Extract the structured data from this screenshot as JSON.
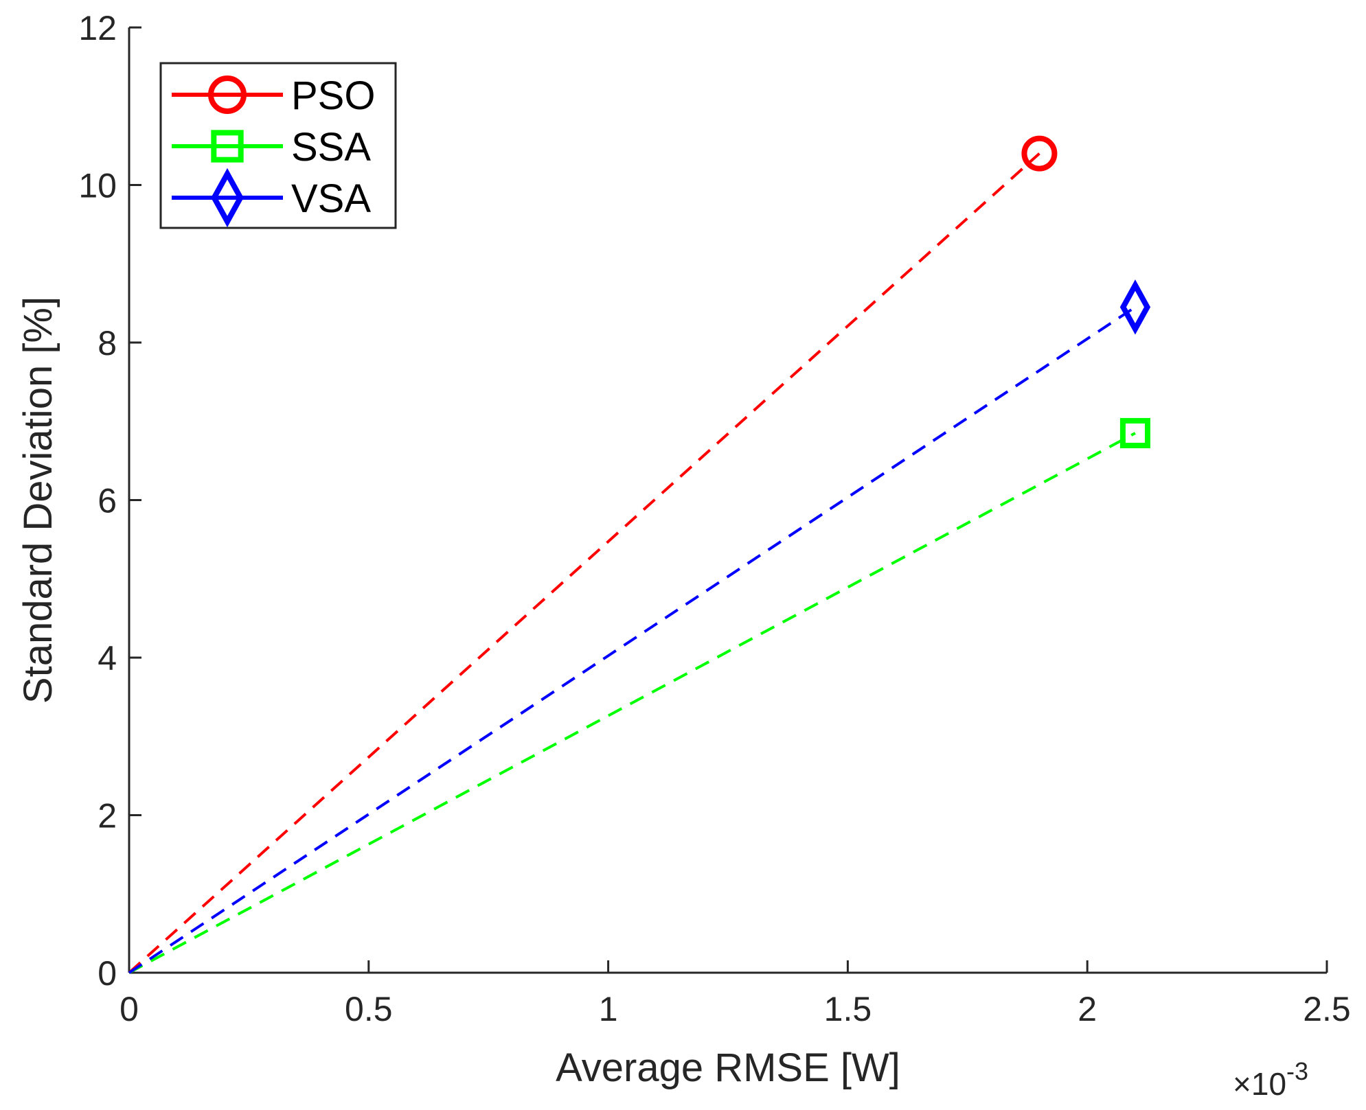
{
  "chart_data": {
    "type": "line",
    "title": "",
    "xlabel": "Average RMSE [W]",
    "ylabel": "Standard Deviation [%]",
    "x_exponent": {
      "base": "×10",
      "power": "-3"
    },
    "xlim": [
      0,
      2.5
    ],
    "ylim": [
      0,
      12
    ],
    "xticks": [
      0,
      0.5,
      1,
      1.5,
      2,
      2.5
    ],
    "xtick_labels": [
      "0",
      "0.5",
      "1",
      "1.5",
      "2",
      "2.5"
    ],
    "yticks": [
      0,
      2,
      4,
      6,
      8,
      10,
      12
    ],
    "ytick_labels": [
      "0",
      "2",
      "4",
      "6",
      "8",
      "10",
      "12"
    ],
    "grid": false,
    "legend_position": "top-left",
    "series": [
      {
        "name": "PSO",
        "color": "#ff0000",
        "marker": "circle",
        "x": [
          0,
          1.9
        ],
        "y": [
          0,
          10.4
        ]
      },
      {
        "name": "SSA",
        "color": "#00ff00",
        "marker": "square",
        "x": [
          0,
          2.1
        ],
        "y": [
          0,
          6.85
        ]
      },
      {
        "name": "VSA",
        "color": "#0000ff",
        "marker": "diamond",
        "x": [
          0,
          2.1
        ],
        "y": [
          0,
          8.45
        ]
      }
    ]
  }
}
